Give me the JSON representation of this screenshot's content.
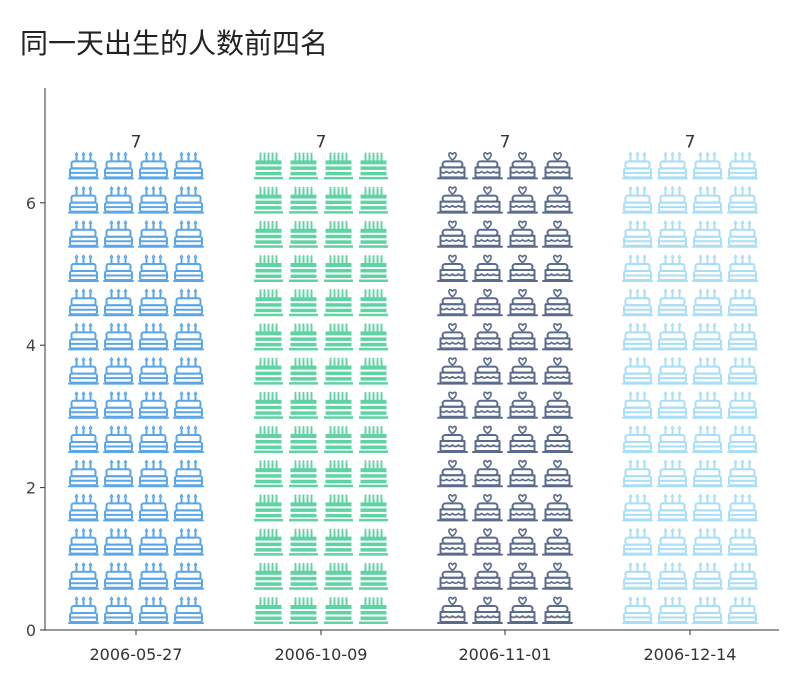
{
  "chart_data": {
    "type": "bar",
    "title": "同一天出生的人数前四名",
    "xlabel": "",
    "ylabel": "",
    "categories": [
      "2006-05-27",
      "2006-10-09",
      "2006-11-01",
      "2006-12-14"
    ],
    "values": [
      7,
      7,
      7,
      7
    ],
    "data_labels": [
      "7",
      "7",
      "7",
      "7"
    ],
    "y_ticks": [
      0,
      2,
      4,
      6
    ],
    "y_tick_labels": [
      "0",
      "2",
      "4",
      "6"
    ],
    "ylim": [
      0,
      7.5
    ],
    "grid": false,
    "legend": "none",
    "colors": [
      "#5aa6e6",
      "#5fd3a3",
      "#5b6b8c",
      "#a8def6"
    ],
    "icons": [
      "birthday-cake-candles-icon",
      "birthday-cake-candles-icon",
      "heart-topped-cake-icon",
      "birthday-cake-candles-icon"
    ]
  }
}
